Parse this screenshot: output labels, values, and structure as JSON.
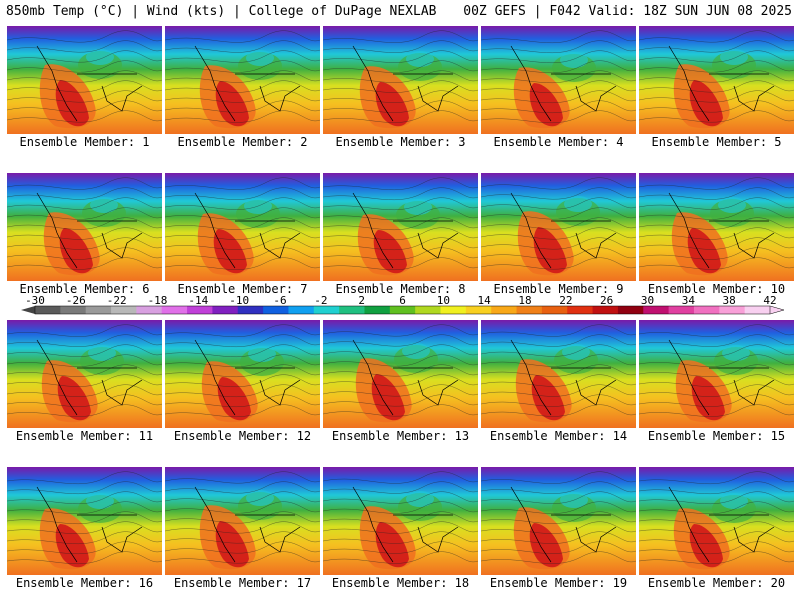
{
  "header": {
    "left": "850mb Temp (°C) | Wind (kts) | College of DuPage NEXLAB",
    "right": "00Z GEFS | F042 Valid: 18Z SUN JUN 08 2025"
  },
  "members": [
    "Ensemble Member: 1",
    "Ensemble Member: 2",
    "Ensemble Member: 3",
    "Ensemble Member: 4",
    "Ensemble Member: 5",
    "Ensemble Member: 6",
    "Ensemble Member: 7",
    "Ensemble Member: 8",
    "Ensemble Member: 9",
    "Ensemble Member: 10",
    "Ensemble Member: 11",
    "Ensemble Member: 12",
    "Ensemble Member: 13",
    "Ensemble Member: 14",
    "Ensemble Member: 15",
    "Ensemble Member: 16",
    "Ensemble Member: 17",
    "Ensemble Member: 18",
    "Ensemble Member: 19",
    "Ensemble Member: 20"
  ],
  "colorbar": {
    "labels": [
      "-30",
      "-26",
      "-22",
      "-18",
      "-14",
      "-10",
      "-6",
      "-2",
      "2",
      "6",
      "10",
      "14",
      "18",
      "22",
      "26",
      "30",
      "34",
      "38",
      "42"
    ],
    "colors": [
      "#5a5a5a",
      "#7a7a7a",
      "#9a9a9a",
      "#b8b8b8",
      "#d8a0e0",
      "#e070e8",
      "#c040d8",
      "#8020c0",
      "#3030c0",
      "#1060e0",
      "#10a0f0",
      "#20d0d0",
      "#20c080",
      "#10a040",
      "#60c020",
      "#b0d820",
      "#f0f020",
      "#f8d020",
      "#f8a818",
      "#f08018",
      "#e86010",
      "#e03010",
      "#c01010",
      "#900010",
      "#c01070",
      "#e040a0",
      "#f070c0",
      "#f8a0d8",
      "#f8d0f0"
    ],
    "min": -30,
    "max": 42
  },
  "map_colors": {
    "cold": "#7a1aa8",
    "cool": "#2060e0",
    "cyan": "#20c8d8",
    "green": "#40b040",
    "yellow": "#d8e020",
    "orange": "#f0a020",
    "warm": "#f07020",
    "hot": "#d01818",
    "ocean_mid": "#f5c020"
  }
}
